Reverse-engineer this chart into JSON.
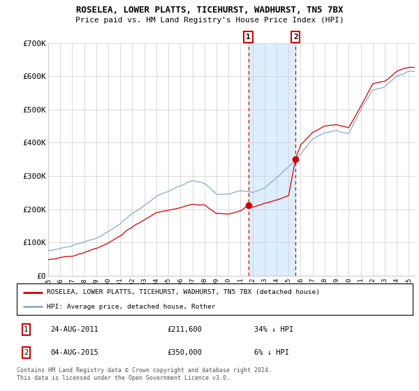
{
  "title": "ROSELEA, LOWER PLATTS, TICEHURST, WADHURST, TN5 7BX",
  "subtitle": "Price paid vs. HM Land Registry's House Price Index (HPI)",
  "ylim": [
    0,
    700000
  ],
  "yticks": [
    0,
    100000,
    200000,
    300000,
    400000,
    500000,
    600000,
    700000
  ],
  "ytick_labels": [
    "£0",
    "£100K",
    "£200K",
    "£300K",
    "£400K",
    "£500K",
    "£600K",
    "£700K"
  ],
  "sale1_date": 2011.646,
  "sale1_price": 211600,
  "sale2_date": 2015.585,
  "sale2_price": 350000,
  "legend_red": "ROSELEA, LOWER PLATTS, TICEHURST, WADHURST, TN5 7BX (detached house)",
  "legend_blue": "HPI: Average price, detached house, Rother",
  "footer": "Contains HM Land Registry data © Crown copyright and database right 2024.\nThis data is licensed under the Open Government Licence v3.0.",
  "red_color": "#cc0000",
  "blue_color": "#88aacc",
  "shade_color": "#ddeeff",
  "grid_color": "#cccccc",
  "hpi_key_years": [
    1995,
    1996,
    1997,
    1998,
    1999,
    2000,
    2001,
    2002,
    2003,
    2004,
    2005,
    2006,
    2007,
    2008,
    2009,
    2010,
    2011,
    2012,
    2013,
    2014,
    2015,
    2016,
    2017,
    2018,
    2019,
    2020,
    2021,
    2022,
    2023,
    2024,
    2025
  ],
  "hpi_key_vals": [
    75000,
    82000,
    90000,
    100000,
    112000,
    130000,
    155000,
    185000,
    210000,
    240000,
    255000,
    270000,
    285000,
    275000,
    245000,
    245000,
    255000,
    250000,
    265000,
    295000,
    330000,
    370000,
    415000,
    435000,
    440000,
    430000,
    500000,
    560000,
    570000,
    600000,
    615000
  ],
  "red_key_years": [
    1995,
    1996,
    1997,
    1998,
    1999,
    2000,
    2001,
    2002,
    2003,
    2004,
    2005,
    2006,
    2007,
    2008,
    2009,
    2010,
    2011,
    2011.646,
    2012,
    2013,
    2014,
    2015,
    2015.585,
    2016,
    2017,
    2018,
    2019,
    2020,
    2021,
    2022,
    2023,
    2024,
    2025
  ],
  "red_key_vals": [
    48000,
    54000,
    60000,
    70000,
    82000,
    97000,
    118000,
    143000,
    163000,
    185000,
    195000,
    205000,
    215000,
    210000,
    185000,
    185000,
    195000,
    211600,
    205000,
    215000,
    225000,
    240000,
    350000,
    390000,
    430000,
    450000,
    455000,
    445000,
    510000,
    575000,
    580000,
    610000,
    625000
  ]
}
